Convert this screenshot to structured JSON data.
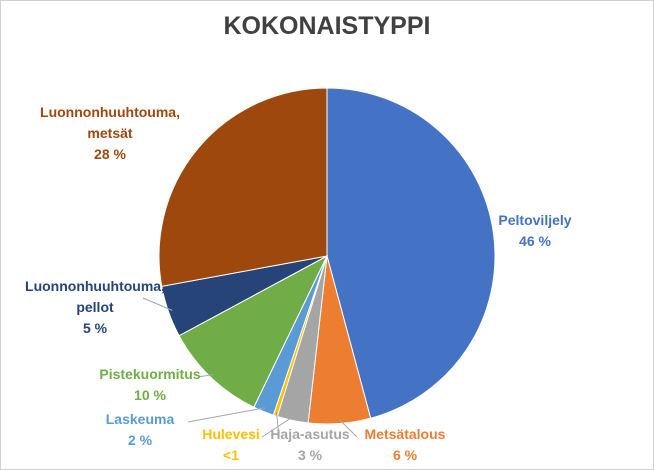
{
  "chart_data": {
    "type": "pie",
    "title": "KOKONAISTYPPI",
    "slices": [
      {
        "name": "Peltoviljely",
        "value": 46,
        "value_label": "46 %",
        "color": "#4472C4"
      },
      {
        "name": "Metsätalous",
        "value": 6,
        "value_label": "6 %",
        "color": "#ED7D31"
      },
      {
        "name": "Haja-asutus",
        "value": 3,
        "value_label": "3 %",
        "color": "#A5A5A5"
      },
      {
        "name": "Hulevesi",
        "value": 0.4,
        "value_label": "<1",
        "color": "#FFC000"
      },
      {
        "name": "Laskeuma",
        "value": 2,
        "value_label": "2 %",
        "color": "#5B9BD5"
      },
      {
        "name": "Pistekuormitus",
        "value": 10,
        "value_label": "10 %",
        "color": "#70AD47"
      },
      {
        "name": "Luonnonhuuhtouma, pellot",
        "value": 5,
        "value_label": "5 %",
        "color": "#264478"
      },
      {
        "name": "Luonnonhuuhtouma, metsät",
        "value": 28,
        "value_label": "28 %",
        "color": "#9E480E"
      }
    ],
    "legend": "none"
  }
}
